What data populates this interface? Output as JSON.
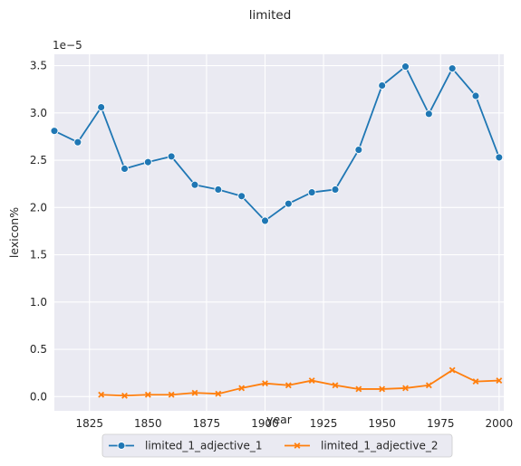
{
  "chart_data": {
    "type": "line",
    "title": "limited",
    "xlabel": "year",
    "ylabel": "lexicon%",
    "y_offset_label": "1e−5",
    "xlim": [
      1810,
      2002
    ],
    "ylim": [
      -0.15,
      3.62
    ],
    "x_ticks": [
      1825,
      1850,
      1875,
      1900,
      1925,
      1950,
      1975,
      2000
    ],
    "y_ticks": [
      0.0,
      0.5,
      1.0,
      1.5,
      2.0,
      2.5,
      3.0,
      3.5
    ],
    "x_tick_labels": [
      "1825",
      "1850",
      "1875",
      "1900",
      "1925",
      "1950",
      "1975",
      "2000"
    ],
    "y_tick_labels": [
      "0.0",
      "0.5",
      "1.0",
      "1.5",
      "2.0",
      "2.5",
      "3.0",
      "3.5"
    ],
    "grid": true,
    "legend_position": "bottom-center",
    "series": [
      {
        "name": "limited_1_adjective_1",
        "color": "#1f77b4",
        "marker": "circle",
        "x": [
          1810,
          1820,
          1830,
          1840,
          1850,
          1860,
          1870,
          1880,
          1890,
          1900,
          1910,
          1920,
          1930,
          1940,
          1950,
          1960,
          1970,
          1980,
          1990,
          2000
        ],
        "y": [
          2.81,
          2.69,
          3.06,
          2.41,
          2.48,
          2.54,
          2.24,
          2.19,
          2.12,
          1.86,
          2.04,
          2.16,
          2.19,
          2.61,
          3.29,
          3.49,
          2.99,
          3.47,
          3.18,
          2.53
        ]
      },
      {
        "name": "limited_1_adjective_2",
        "color": "#ff7f0e",
        "marker": "x",
        "x": [
          1830,
          1840,
          1850,
          1860,
          1870,
          1880,
          1890,
          1900,
          1910,
          1920,
          1930,
          1940,
          1950,
          1960,
          1970,
          1980,
          1990,
          2000
        ],
        "y": [
          0.02,
          0.01,
          0.02,
          0.02,
          0.04,
          0.03,
          0.09,
          0.14,
          0.12,
          0.17,
          0.12,
          0.08,
          0.08,
          0.09,
          0.12,
          0.28,
          0.16,
          0.17
        ]
      }
    ]
  }
}
